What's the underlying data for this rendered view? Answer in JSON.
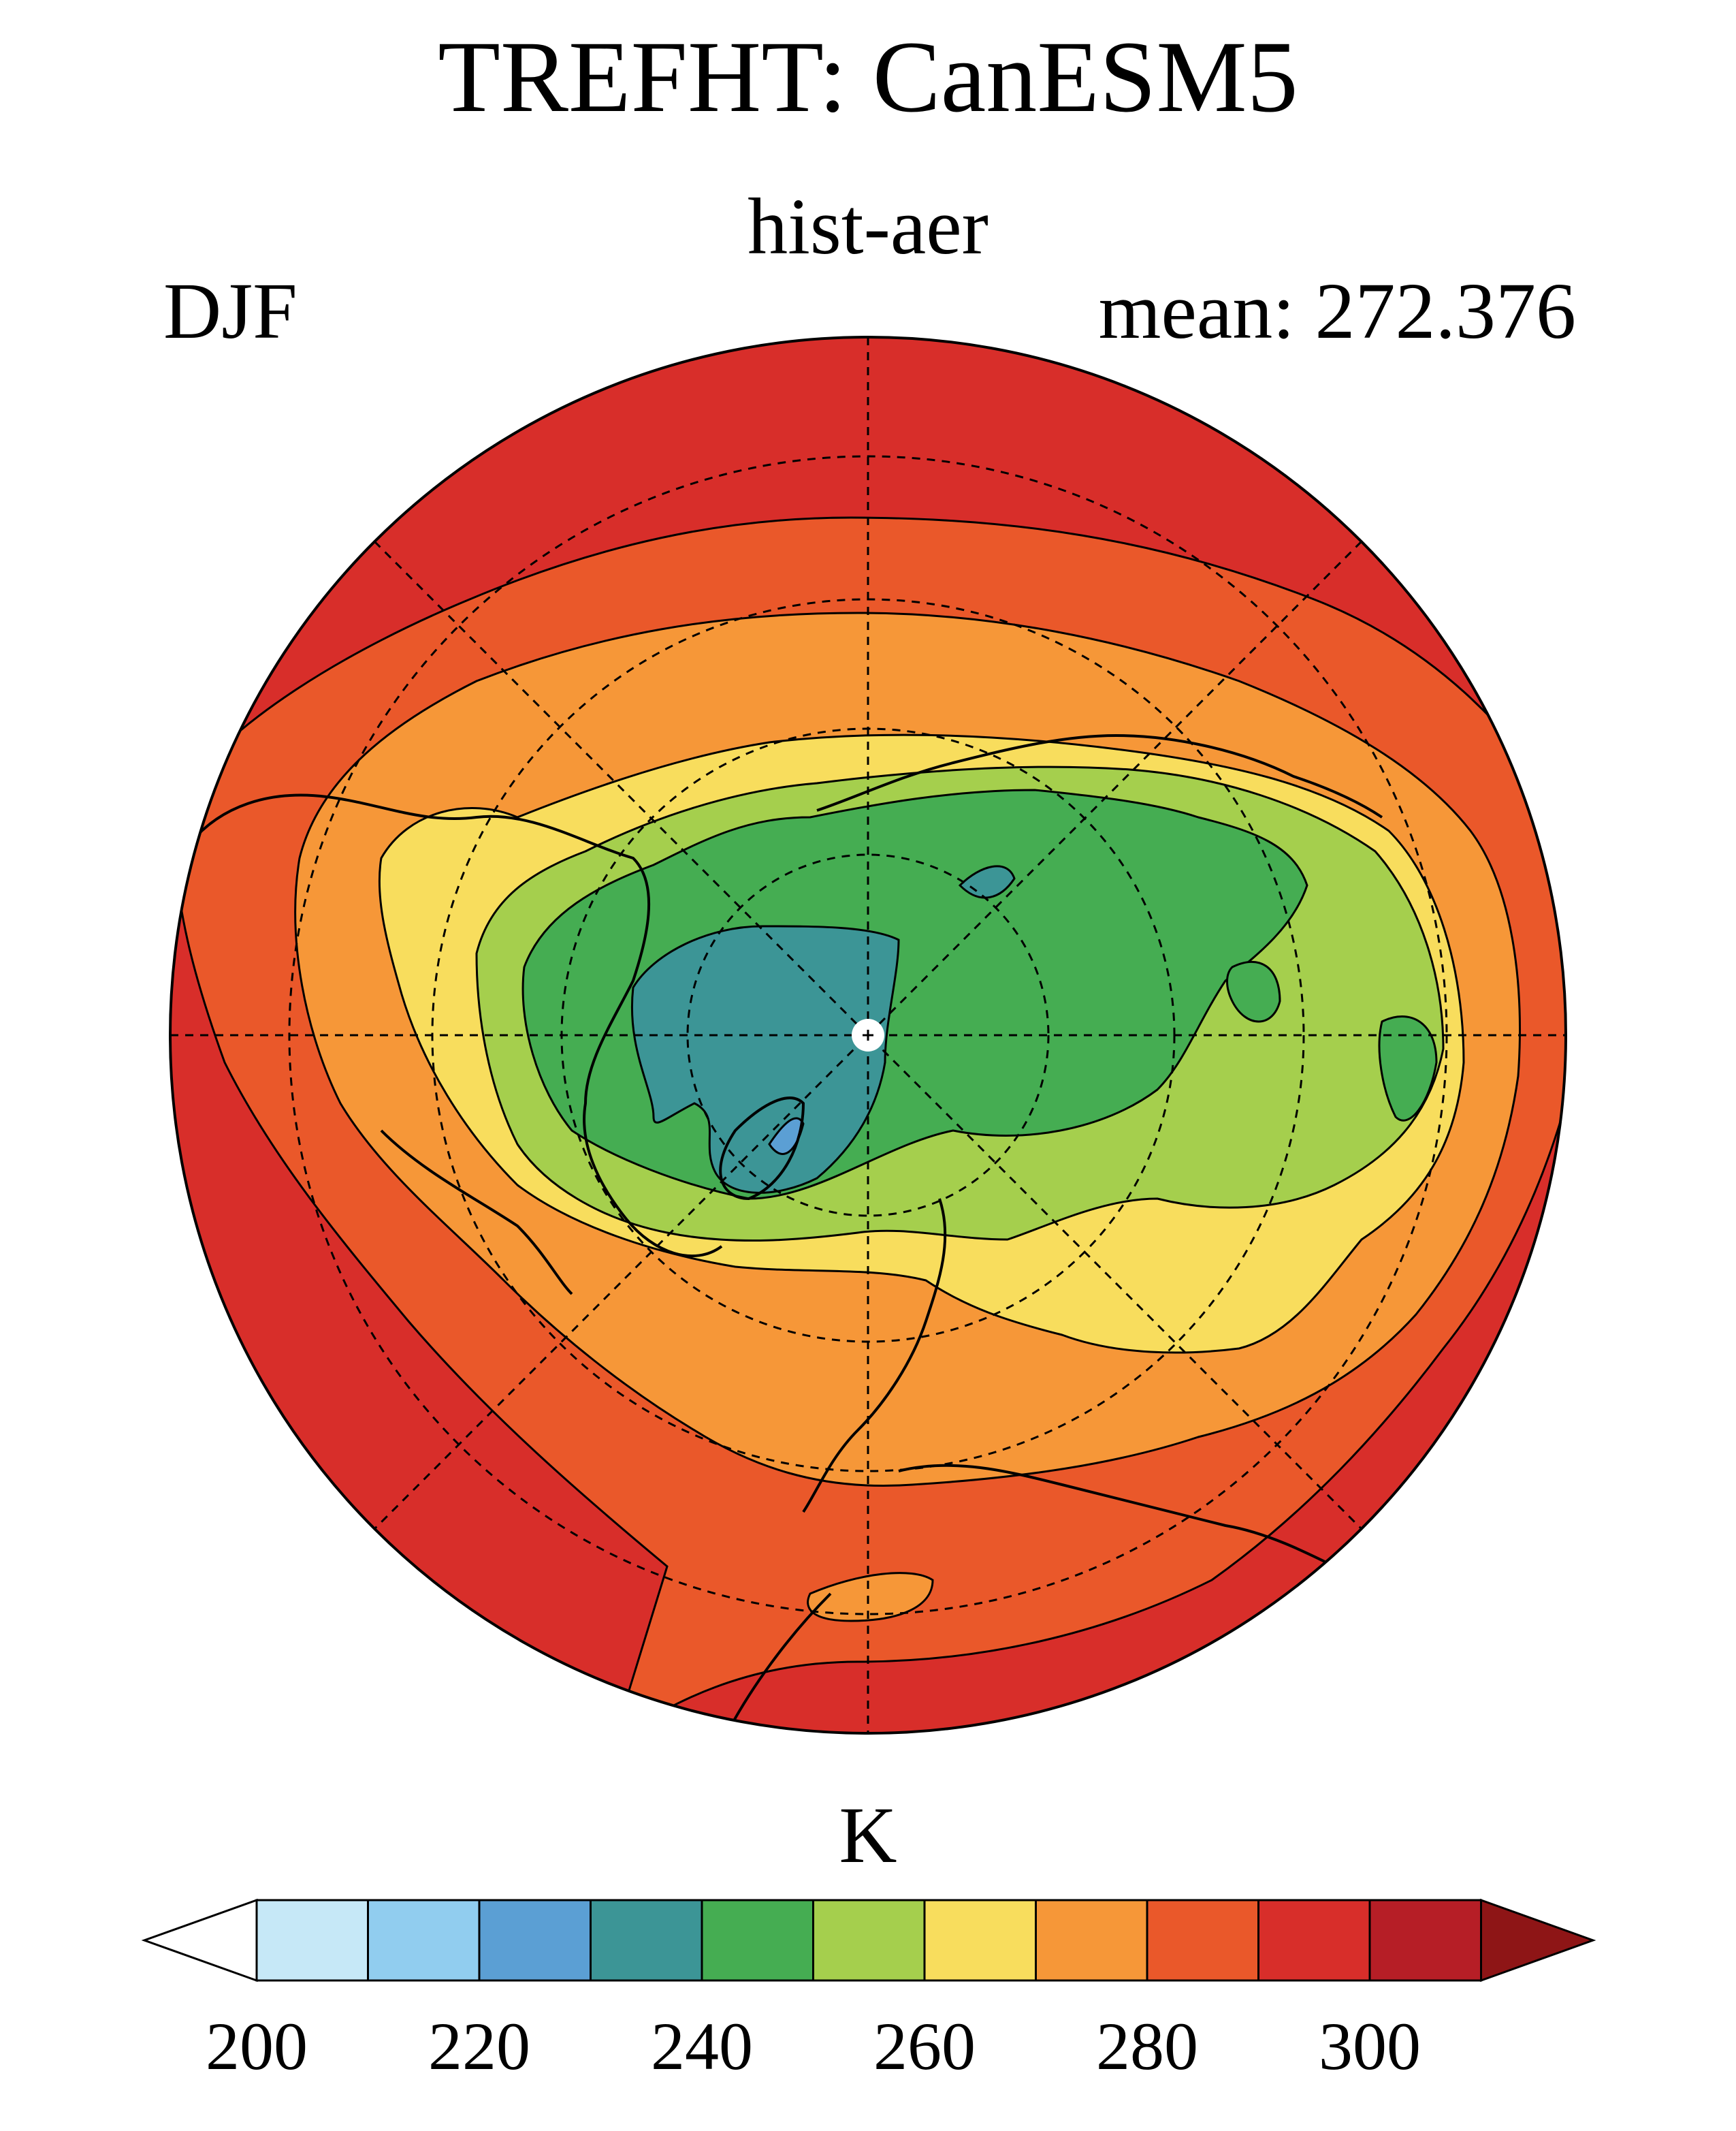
{
  "title": "TREFHT: CanESM5",
  "subtitle": "hist-aer",
  "season": "DJF",
  "mean_label": "mean: 272.376",
  "map": {
    "projection": "north-polar-stereographic",
    "variable": "TREFHT",
    "contour_interval": 10,
    "levels": [
      200,
      210,
      220,
      230,
      240,
      250,
      260,
      270,
      280,
      290,
      300,
      310
    ]
  },
  "colorbar": {
    "units": "K",
    "tick_labels": [
      "200",
      "220",
      "240",
      "260",
      "280",
      "300"
    ],
    "colors": [
      "#ffffff",
      "#c6e8f7",
      "#91cdef",
      "#5b9fd4",
      "#3c9596",
      "#45ad52",
      "#a5cf4d",
      "#f8dd5d",
      "#f69738",
      "#ea582a",
      "#d82e2a",
      "#b61e26",
      "#8e1516"
    ]
  }
}
